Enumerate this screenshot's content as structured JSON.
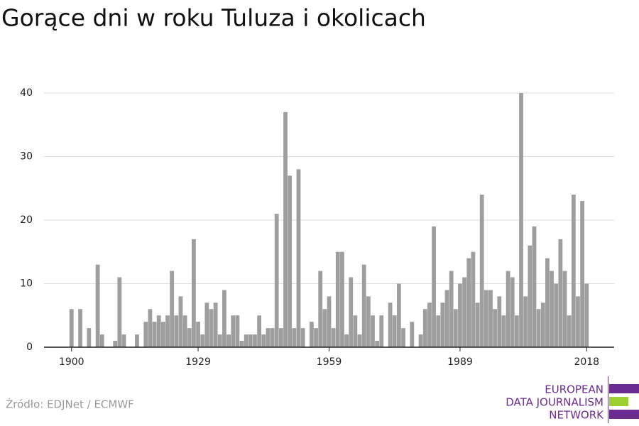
{
  "chart_data": {
    "type": "bar",
    "title": "Gorące dni w roku Tuluza i okolicach",
    "x": [
      1900,
      1901,
      1902,
      1903,
      1904,
      1905,
      1906,
      1907,
      1908,
      1909,
      1910,
      1911,
      1912,
      1913,
      1914,
      1915,
      1916,
      1917,
      1918,
      1919,
      1920,
      1921,
      1922,
      1923,
      1924,
      1925,
      1926,
      1927,
      1928,
      1929,
      1930,
      1931,
      1932,
      1933,
      1934,
      1935,
      1936,
      1937,
      1938,
      1939,
      1940,
      1941,
      1942,
      1943,
      1944,
      1945,
      1946,
      1947,
      1948,
      1949,
      1950,
      1951,
      1952,
      1953,
      1954,
      1955,
      1956,
      1957,
      1958,
      1959,
      1960,
      1961,
      1962,
      1963,
      1964,
      1965,
      1966,
      1967,
      1968,
      1969,
      1970,
      1971,
      1972,
      1973,
      1974,
      1975,
      1976,
      1977,
      1978,
      1979,
      1980,
      1981,
      1982,
      1983,
      1984,
      1985,
      1986,
      1987,
      1988,
      1989,
      1990,
      1991,
      1992,
      1993,
      1994,
      1995,
      1996,
      1997,
      1998,
      1999,
      2000,
      2001,
      2002,
      2003,
      2004,
      2005,
      2006,
      2007,
      2008,
      2009,
      2010,
      2011,
      2012,
      2013,
      2014,
      2015,
      2016,
      2017,
      2018
    ],
    "values": [
      6,
      0,
      6,
      0,
      3,
      0,
      13,
      2,
      0,
      0,
      1,
      11,
      2,
      0,
      0,
      2,
      0,
      4,
      6,
      4,
      5,
      4,
      5,
      12,
      5,
      8,
      5,
      3,
      17,
      4,
      2,
      7,
      6,
      7,
      2,
      9,
      2,
      5,
      5,
      1,
      2,
      2,
      2,
      5,
      2,
      3,
      3,
      21,
      3,
      37,
      27,
      3,
      28,
      3,
      0,
      4,
      3,
      12,
      6,
      8,
      3,
      15,
      15,
      2,
      11,
      5,
      2,
      13,
      8,
      5,
      1,
      5,
      0,
      7,
      5,
      10,
      3,
      0,
      4,
      0,
      2,
      6,
      7,
      19,
      5,
      7,
      9,
      12,
      6,
      10,
      11,
      14,
      15,
      7,
      24,
      9,
      9,
      6,
      8,
      5,
      12,
      11,
      5,
      40,
      8,
      16,
      19,
      6,
      7,
      14,
      12,
      10,
      17,
      12,
      5,
      24,
      8,
      23,
      10
    ],
    "color": "#9e9e9e",
    "xlim": [
      1893.7,
      2024.3
    ],
    "xticks": [
      1900,
      1929,
      1959,
      1989,
      2018
    ],
    "ylim": [
      0,
      40
    ],
    "yticks": [
      0,
      10,
      20,
      30,
      40
    ],
    "grid": true
  },
  "source": "Źródło: EDJNet / ECMWF",
  "logo": {
    "lines": [
      "EUROPEAN",
      "DATA JOURNALISM",
      "NETWORK"
    ]
  }
}
